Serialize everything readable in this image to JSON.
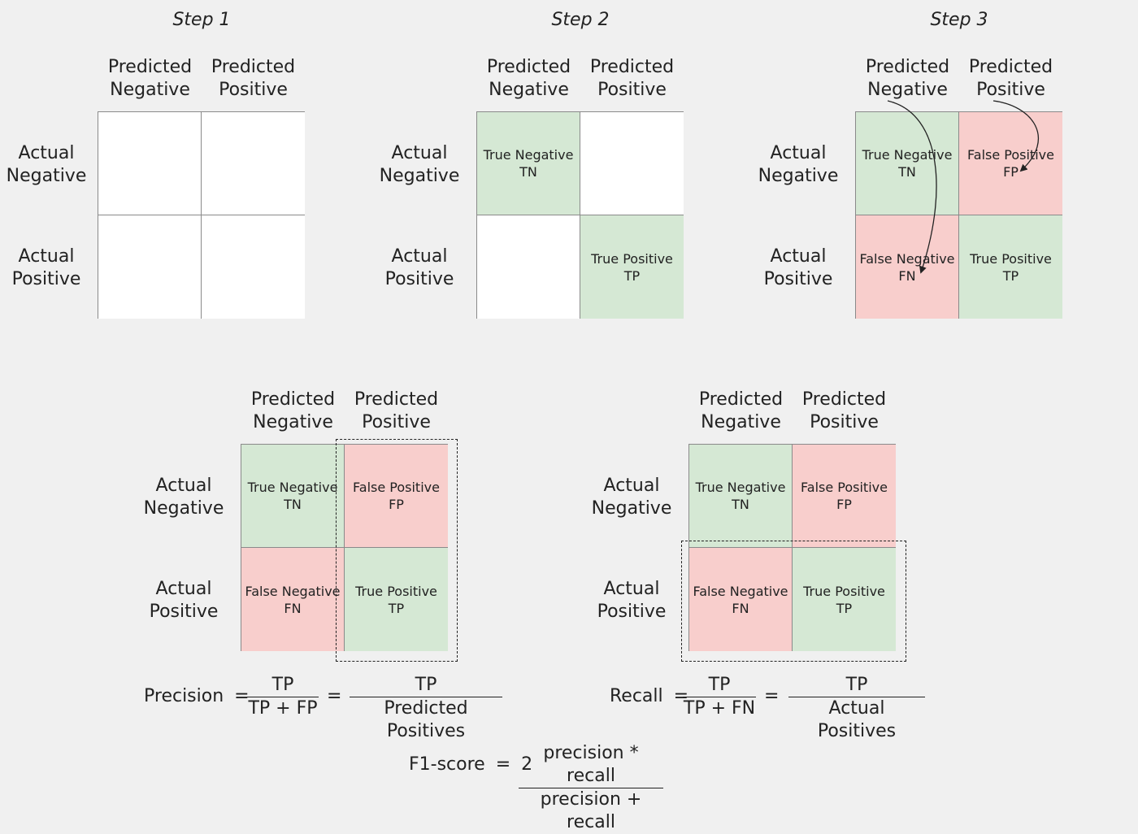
{
  "steps": [
    "Step 1",
    "Step 2",
    "Step 3"
  ],
  "labels": {
    "pred_neg_1": "Predicted",
    "pred_neg_2": "Negative",
    "pred_pos_1": "Predicted",
    "pred_pos_2": "Positive",
    "act_neg_1": "Actual",
    "act_neg_2": "Negative",
    "act_pos_1": "Actual",
    "act_pos_2": "Positive"
  },
  "cells": {
    "tn_name": "True Negative",
    "tn_abbr": "TN",
    "fp_name": "False Positive",
    "fp_abbr": "FP",
    "fn_name": "False Negative",
    "fn_abbr": "FN",
    "tp_name": "True Positive",
    "tp_abbr": "TP"
  },
  "colors": {
    "background": "#f0f0f0",
    "correct": "#d5e8d4",
    "incorrect": "#f8cecc",
    "empty": "#ffffff"
  },
  "formulas": {
    "precision": {
      "label": "Precision",
      "eq": "=",
      "num1": "TP",
      "den1": "TP + FP",
      "num2": "TP",
      "den2": "Predicted Positives"
    },
    "recall": {
      "label": "Recall",
      "eq": "=",
      "num1": "TP",
      "den1": "TP + FN",
      "num2": "TP",
      "den2": "Actual Positives"
    },
    "f1": {
      "label": "F1-score",
      "eq": "=",
      "coef": "2",
      "num": "precision * recall",
      "den": "precision + recall"
    }
  }
}
